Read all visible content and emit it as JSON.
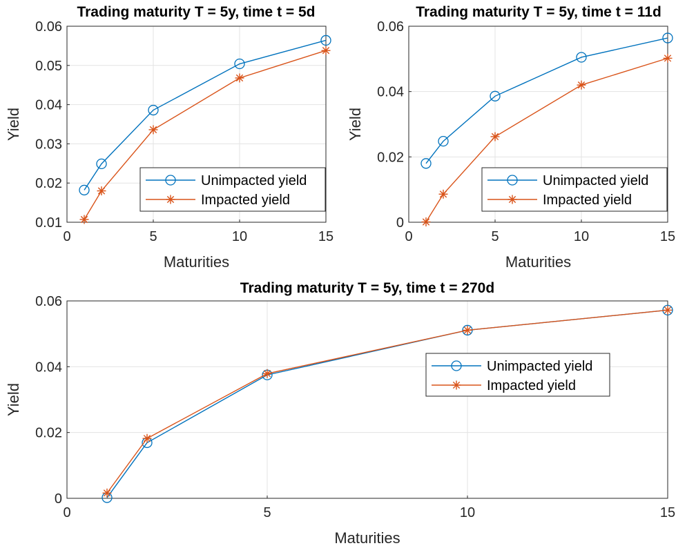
{
  "chart_data": [
    {
      "type": "line",
      "title": "Trading maturity T = 5y, time t = 5d",
      "xlabel": "Maturities",
      "ylabel": "Yield",
      "xlim": [
        0,
        15
      ],
      "ylim": [
        0.01,
        0.06
      ],
      "xticks": [
        "0",
        "5",
        "10",
        "15"
      ],
      "yticks": [
        "0.01",
        "0.02",
        "0.03",
        "0.04",
        "0.05",
        "0.06"
      ],
      "grid": true,
      "legend_position": "bottom-right",
      "x": [
        1,
        2,
        5,
        10,
        15
      ],
      "series": [
        {
          "name": "Unimpacted yield",
          "marker": "circle",
          "color": "#0072BD",
          "values": [
            0.0182,
            0.0249,
            0.0386,
            0.0504,
            0.0564
          ]
        },
        {
          "name": "Impacted yield",
          "marker": "asterisk",
          "color": "#D95319",
          "values": [
            0.0107,
            0.018,
            0.0336,
            0.0468,
            0.0538
          ]
        }
      ]
    },
    {
      "type": "line",
      "title": "Trading maturity T = 5y, time t = 11d",
      "xlabel": "Maturities",
      "ylabel": "Yield",
      "xlim": [
        0,
        15
      ],
      "ylim": [
        0,
        0.06
      ],
      "xticks": [
        "0",
        "5",
        "10",
        "15"
      ],
      "yticks": [
        "0",
        "0.02",
        "0.04",
        "0.06"
      ],
      "grid": true,
      "legend_position": "bottom-right",
      "x": [
        1,
        2,
        5,
        10,
        15
      ],
      "series": [
        {
          "name": "Unimpacted yield",
          "marker": "circle",
          "color": "#0072BD",
          "values": [
            0.018,
            0.0248,
            0.0386,
            0.0505,
            0.0564
          ]
        },
        {
          "name": "Impacted yield",
          "marker": "asterisk",
          "color": "#D95319",
          "values": [
            0.0001,
            0.0086,
            0.0262,
            0.042,
            0.0502
          ]
        }
      ]
    },
    {
      "type": "line",
      "title": "Trading maturity T = 5y, time t = 270d",
      "xlabel": "Maturities",
      "ylabel": "Yield",
      "xlim": [
        0,
        15
      ],
      "ylim": [
        0,
        0.06
      ],
      "xticks": [
        "0",
        "5",
        "10",
        "15"
      ],
      "yticks": [
        "0",
        "0.02",
        "0.04",
        "0.06"
      ],
      "grid": true,
      "legend_position": "right",
      "x": [
        1,
        2,
        5,
        10,
        15
      ],
      "series": [
        {
          "name": "Unimpacted yield",
          "marker": "circle",
          "color": "#0072BD",
          "values": [
            0.0002,
            0.0169,
            0.0375,
            0.0511,
            0.0572
          ]
        },
        {
          "name": "Impacted yield",
          "marker": "asterisk",
          "color": "#D95319",
          "values": [
            0.0016,
            0.0182,
            0.0379,
            0.0511,
            0.0572
          ]
        }
      ]
    }
  ]
}
